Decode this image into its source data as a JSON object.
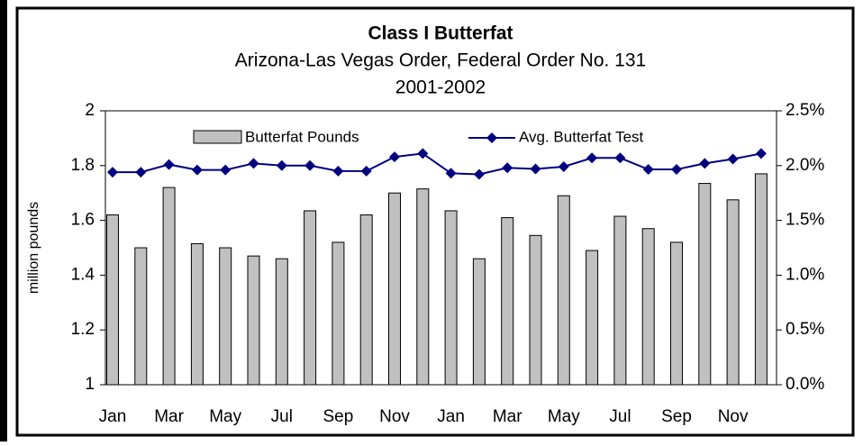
{
  "chart_data": {
    "type": "bar-line",
    "title": "Class I Butterfat",
    "subtitle": [
      "Arizona-Las Vegas Order, Federal Order No. 131",
      "2001-2002"
    ],
    "ylabel": "million pounds",
    "categories": [
      "Jan",
      null,
      "Mar",
      null,
      "May",
      null,
      "Jul",
      null,
      "Sep",
      null,
      "Nov",
      null,
      "Jan",
      null,
      "Mar",
      null,
      "May",
      null,
      "Jul",
      null,
      "Sep",
      null,
      "Nov",
      null
    ],
    "series": [
      {
        "name": "Butterfat Pounds",
        "color": "#c0c0c0",
        "values": [
          1.62,
          1.5,
          1.72,
          1.515,
          1.5,
          1.47,
          1.46,
          1.635,
          1.52,
          1.62,
          1.7,
          1.715,
          1.635,
          1.46,
          1.61,
          1.545,
          1.69,
          1.49,
          1.615,
          1.57,
          1.52,
          1.735,
          1.675,
          1.77
        ]
      },
      {
        "name": "Avg. Butterfat Test",
        "color": "#000080",
        "axis": "y2",
        "values": [
          1.94,
          1.94,
          2.01,
          1.96,
          1.96,
          2.02,
          2.0,
          2.0,
          1.95,
          1.95,
          2.08,
          2.11,
          1.93,
          1.92,
          1.98,
          1.97,
          1.99,
          2.07,
          2.07,
          1.965,
          1.965,
          2.02,
          2.06,
          2.11
        ]
      }
    ],
    "ylim": [
      1,
      2
    ],
    "yticks": [
      1,
      1.2,
      1.4,
      1.6,
      1.8,
      2
    ],
    "y2lim": [
      0,
      2.5
    ],
    "y2ticks": [
      {
        "value": 0,
        "label": "0.0%"
      },
      {
        "value": 0.5,
        "label": "0.5%"
      },
      {
        "value": 1,
        "label": "1.0%"
      },
      {
        "value": 1.5,
        "label": "1.5%"
      },
      {
        "value": 2,
        "label": "2.0%"
      },
      {
        "value": 2.5,
        "label": "2.5%"
      }
    ]
  }
}
